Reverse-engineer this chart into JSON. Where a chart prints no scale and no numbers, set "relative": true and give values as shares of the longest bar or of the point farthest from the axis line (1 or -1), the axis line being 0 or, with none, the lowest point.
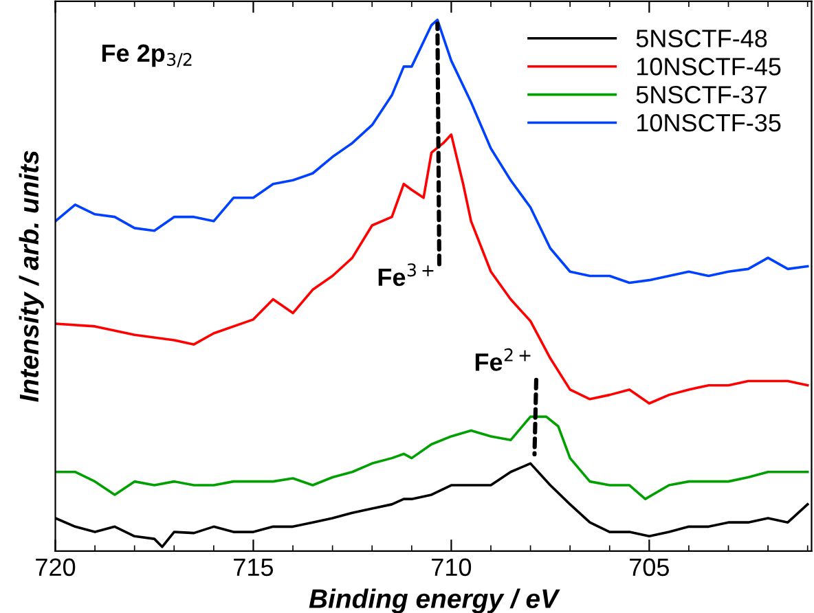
{
  "chart_data": {
    "type": "line",
    "relative": true,
    "xlabel": "Binding energy / eV",
    "ylabel": "Intensity / arb. units",
    "xlim": [
      720,
      700.9
    ],
    "xticks": [
      720,
      715,
      710,
      705
    ],
    "tick_labels": "x",
    "legend": "top right",
    "annotations": [
      "Fe 2p$_{3/2}$",
      {
        "text": "Fe$^{3+}$",
        "x": 710.35,
        "y": 1
      },
      {
        "text": "Fe$^{2+}$",
        "x": 707.9,
        "y": 0.175
      }
    ],
    "series": [
      {
        "name": "5NSCTF-48",
        "color": "#000000",
        "x": [
          720,
          719.5,
          719,
          718.5,
          718,
          717.5,
          717.3,
          717,
          716.5,
          716,
          715.5,
          715,
          714.5,
          714,
          713.5,
          713,
          712.5,
          712,
          711.5,
          711.2,
          711,
          710.5,
          710,
          709.5,
          709,
          708.5,
          708,
          707.5,
          707,
          706.5,
          706,
          705.5,
          705,
          704.5,
          704,
          703.5,
          703,
          702.5,
          702,
          701.5,
          701
        ],
        "values": [
          0.062,
          0.046,
          0.036,
          0.046,
          0.028,
          0.023,
          0.008,
          0.036,
          0.034,
          0.046,
          0.036,
          0.036,
          0.046,
          0.046,
          0.054,
          0.062,
          0.072,
          0.08,
          0.088,
          0.098,
          0.098,
          0.106,
          0.124,
          0.124,
          0.124,
          0.149,
          0.165,
          0.124,
          0.088,
          0.054,
          0.036,
          0.036,
          0.028,
          0.036,
          0.046,
          0.046,
          0.054,
          0.054,
          0.062,
          0.054,
          0.088
        ]
      },
      {
        "name": "10NSCTF-45",
        "color": "#ff0000",
        "x": [
          720,
          719,
          718,
          717,
          716.5,
          716,
          715,
          714.5,
          714,
          713.5,
          713,
          712.5,
          712,
          711.5,
          711.2,
          711,
          710.7,
          710.5,
          710.2,
          710,
          709.7,
          709.5,
          709,
          708.5,
          708,
          707.5,
          707,
          706.5,
          706,
          705.5,
          705,
          704.5,
          704,
          703.5,
          703,
          702.5,
          702,
          701.5,
          701
        ],
        "values": [
          0.428,
          0.423,
          0.407,
          0.397,
          0.389,
          0.41,
          0.436,
          0.474,
          0.448,
          0.492,
          0.518,
          0.552,
          0.613,
          0.629,
          0.691,
          0.68,
          0.665,
          0.75,
          0.768,
          0.784,
          0.691,
          0.621,
          0.526,
          0.474,
          0.433,
          0.363,
          0.304,
          0.286,
          0.294,
          0.304,
          0.278,
          0.294,
          0.304,
          0.312,
          0.312,
          0.32,
          0.32,
          0.32,
          0.312
        ]
      },
      {
        "name": "5NSCTF-37",
        "color": "#00a000",
        "x": [
          720,
          719.5,
          719,
          718.5,
          718,
          717.5,
          717,
          716.5,
          716,
          715.5,
          715,
          714.5,
          714,
          713.5,
          713,
          712.5,
          712,
          711.5,
          711.2,
          711,
          710.5,
          710,
          709.5,
          709,
          708.5,
          708,
          707.6,
          707.3,
          707,
          706.5,
          706,
          705.5,
          705.1,
          704.5,
          704,
          703.5,
          703,
          702.5,
          702,
          701.5,
          701
        ],
        "values": [
          0.149,
          0.149,
          0.131,
          0.106,
          0.131,
          0.124,
          0.131,
          0.124,
          0.124,
          0.131,
          0.131,
          0.131,
          0.137,
          0.124,
          0.139,
          0.149,
          0.165,
          0.175,
          0.183,
          0.175,
          0.201,
          0.216,
          0.227,
          0.216,
          0.209,
          0.253,
          0.253,
          0.235,
          0.175,
          0.131,
          0.124,
          0.124,
          0.098,
          0.124,
          0.131,
          0.131,
          0.131,
          0.139,
          0.149,
          0.149,
          0.149
        ]
      },
      {
        "name": "10NSCTF-35",
        "color": "#0040ff",
        "x": [
          720,
          719.5,
          719,
          718.5,
          718,
          717.5,
          717,
          716.5,
          716,
          715.5,
          715,
          714.5,
          714,
          713.5,
          713,
          712.5,
          712,
          711.5,
          711.2,
          711,
          710.5,
          710.35,
          710,
          709.5,
          709,
          708.5,
          708,
          707.5,
          707,
          706.5,
          706,
          705.5,
          705,
          704.5,
          704,
          703.5,
          703,
          702.5,
          702,
          701.5,
          701
        ],
        "values": [
          0.621,
          0.652,
          0.634,
          0.629,
          0.608,
          0.603,
          0.629,
          0.629,
          0.621,
          0.665,
          0.665,
          0.691,
          0.698,
          0.711,
          0.742,
          0.768,
          0.802,
          0.858,
          0.912,
          0.912,
          0.99,
          1,
          0.923,
          0.845,
          0.758,
          0.698,
          0.647,
          0.57,
          0.526,
          0.518,
          0.518,
          0.505,
          0.51,
          0.518,
          0.526,
          0.518,
          0.526,
          0.531,
          0.552,
          0.531,
          0.536
        ]
      }
    ]
  }
}
